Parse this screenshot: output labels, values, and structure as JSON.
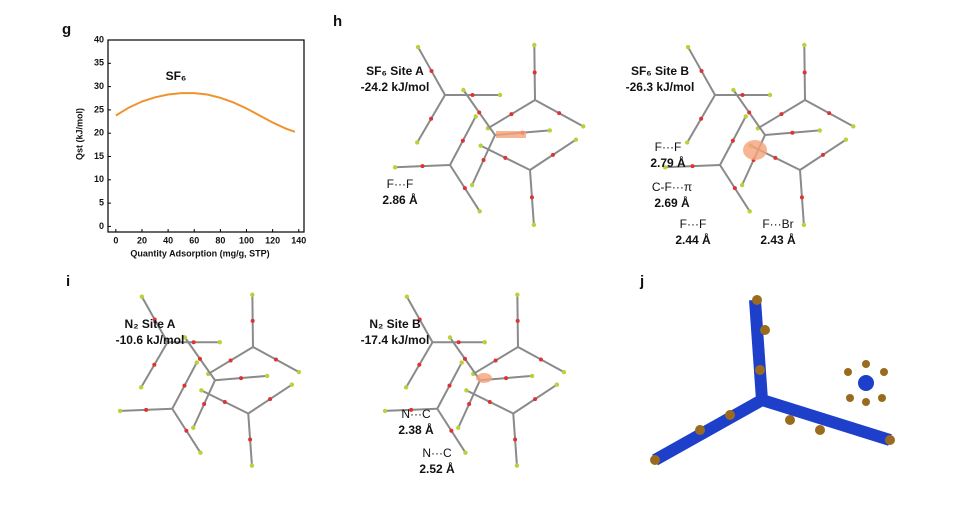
{
  "chart_data": {
    "type": "line",
    "panel_label": "g",
    "x_label": "Quantity Adsorption (mg/g, STP)",
    "y_label": "Qst (kJ/mol)",
    "annotation": "SF₆",
    "x": [
      0,
      10,
      20,
      30,
      40,
      50,
      60,
      70,
      80,
      90,
      100,
      110,
      120,
      130,
      137
    ],
    "series": [
      {
        "name": "SF₆",
        "color": "#f0922e",
        "values": [
          23.8,
          25.5,
          26.8,
          27.7,
          28.3,
          28.6,
          28.6,
          28.3,
          27.6,
          26.6,
          25.3,
          23.8,
          22.3,
          21.0,
          20.3
        ]
      }
    ],
    "xlim": [
      -6,
      144
    ],
    "ylim": [
      -1.2,
      40
    ],
    "xticks": [
      0,
      20,
      40,
      60,
      80,
      100,
      120,
      140
    ],
    "yticks": [
      0,
      5,
      10,
      15,
      20,
      25,
      30,
      35,
      40
    ]
  },
  "panels": [
    {
      "label": "h",
      "texts": [
        "SF₆ Site A",
        "-24.2 kJ/mol",
        "F···F",
        "2.86 Å",
        "SF₆ Site B",
        "-26.3 kJ/mol",
        "F···F",
        "2.79 Å",
        "C-F···π",
        "2.69 Å",
        "F···F",
        "2.44 Å",
        "F···Br",
        "2.43 Å"
      ]
    },
    {
      "label": "i",
      "texts": [
        "N₂ Site A",
        "-10.6 kJ/mol",
        "N₂ Site B",
        "-17.4 kJ/mol",
        "N···C",
        "2.38 Å",
        "N···C",
        "2.52 Å"
      ]
    },
    {
      "label": "j",
      "texts": []
    }
  ]
}
